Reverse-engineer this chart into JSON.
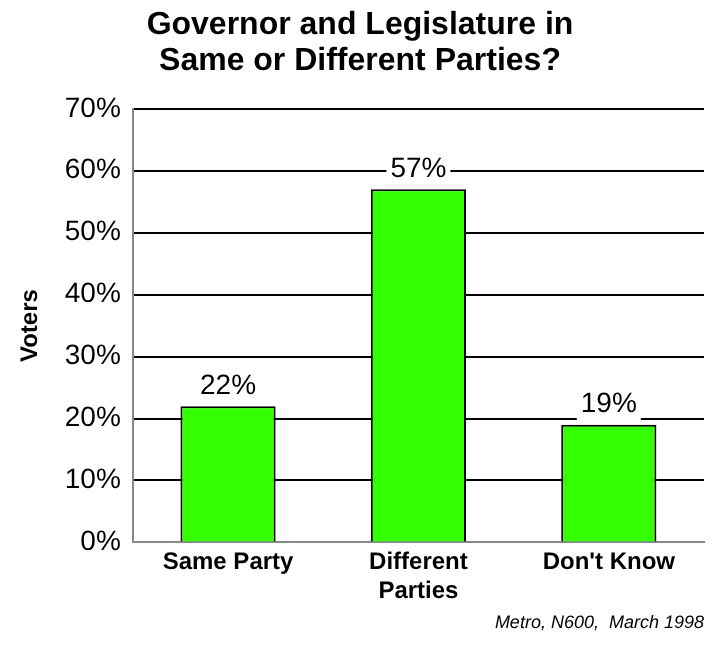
{
  "chart_data": {
    "type": "bar",
    "title": "Governor and Legislature in Same or Different Parties?",
    "ylabel": "Voters",
    "categories": [
      "Same Party",
      "Different Parties",
      "Don't Know"
    ],
    "values": [
      22,
      57,
      19
    ],
    "color": "#33ff00",
    "ylim": [
      0,
      70
    ],
    "yticks": [
      {
        "value": 0,
        "label": "0%"
      },
      {
        "value": 10,
        "label": "10%"
      },
      {
        "value": 20,
        "label": "20%"
      },
      {
        "value": 30,
        "label": "30%"
      },
      {
        "value": 40,
        "label": "40%"
      },
      {
        "value": 50,
        "label": "50%"
      },
      {
        "value": 60,
        "label": "60%"
      },
      {
        "value": 70,
        "label": "70%"
      }
    ],
    "value_labels": [
      "22%",
      "57%",
      "19%"
    ],
    "grid": "y",
    "annotations": [
      "Metro, N600,  March 1998"
    ]
  }
}
